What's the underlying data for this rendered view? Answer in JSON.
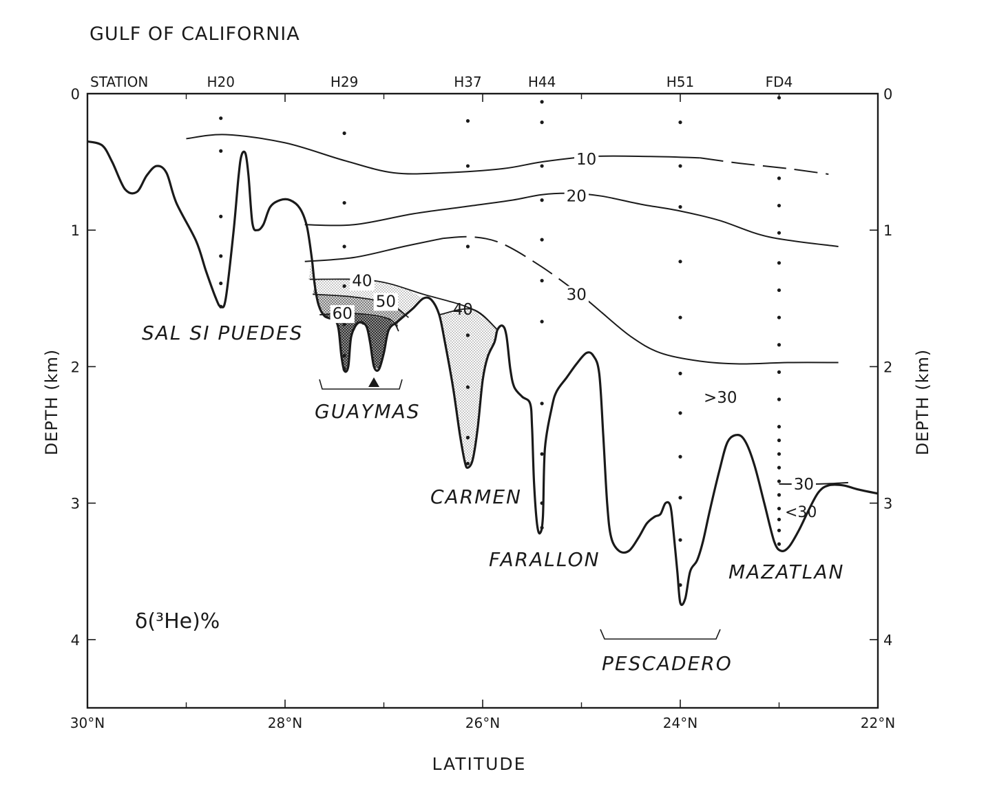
{
  "chart_data": {
    "type": "contour-section",
    "title": "GULF OF CALIFORNIA",
    "xlabel": "LATITUDE",
    "ylabel": "DEPTH (km)",
    "quantity_label": "δ(³He)%",
    "x_axis": {
      "ticks": [
        30,
        28,
        26,
        24,
        22
      ],
      "tick_labels": [
        "30°N",
        "28°N",
        "26°N",
        "24°N",
        "22°N"
      ],
      "range": [
        30,
        22
      ]
    },
    "y_axis": {
      "ticks": [
        0,
        1,
        2,
        3,
        4
      ],
      "tick_labels": [
        "0",
        "1",
        "2",
        "3",
        "4"
      ],
      "range": [
        0,
        4.5
      ]
    },
    "station_header": "STATION",
    "stations": [
      {
        "name": "H20",
        "lat": 28.65,
        "depths": [
          0.18,
          0.42,
          0.9,
          1.19,
          1.39,
          1.56
        ]
      },
      {
        "name": "H29",
        "lat": 27.4,
        "depths": [
          0.29,
          0.8,
          1.12,
          1.41,
          1.69,
          1.92,
          2.02
        ]
      },
      {
        "name": "H37",
        "lat": 26.15,
        "depths": [
          0.2,
          0.53,
          1.12,
          1.77,
          2.15,
          2.52,
          2.71
        ]
      },
      {
        "name": "H44",
        "lat": 25.4,
        "depths": [
          0.06,
          0.21,
          0.53,
          0.78,
          1.07,
          1.37,
          1.67,
          2.27,
          2.64,
          3.0,
          3.18
        ]
      },
      {
        "name": "H51",
        "lat": 24.0,
        "depths": [
          0.21,
          0.53,
          0.83,
          1.23,
          1.64,
          2.05,
          2.34,
          2.66,
          2.96,
          3.27,
          3.6
        ]
      },
      {
        "name": "FD4",
        "lat": 23.0,
        "depths": [
          0.03,
          0.62,
          0.82,
          1.02,
          1.24,
          1.44,
          1.64,
          1.84,
          2.04,
          2.24,
          2.44,
          2.54,
          2.64,
          2.74,
          2.84,
          2.94,
          3.04,
          3.12,
          3.2,
          3.3
        ]
      }
    ],
    "contours": [
      {
        "label": "10",
        "points": [
          [
            29.0,
            0.33
          ],
          [
            28.6,
            0.3
          ],
          [
            28.0,
            0.36
          ],
          [
            27.4,
            0.49
          ],
          [
            26.9,
            0.58
          ],
          [
            26.4,
            0.58
          ],
          [
            25.8,
            0.55
          ],
          [
            25.4,
            0.5
          ],
          [
            24.9,
            0.46
          ],
          [
            24.3,
            0.46
          ],
          [
            23.8,
            0.47
          ]
        ],
        "dashed_points": [
          [
            23.8,
            0.47
          ],
          [
            23.4,
            0.51
          ],
          [
            22.9,
            0.55
          ],
          [
            22.5,
            0.59
          ]
        ]
      },
      {
        "label": "20",
        "points": [
          [
            27.8,
            0.96
          ],
          [
            27.3,
            0.96
          ],
          [
            26.7,
            0.88
          ],
          [
            26.2,
            0.83
          ],
          [
            25.7,
            0.78
          ],
          [
            25.4,
            0.74
          ],
          [
            25.1,
            0.73
          ],
          [
            24.8,
            0.75
          ],
          [
            24.4,
            0.81
          ],
          [
            24.0,
            0.86
          ],
          [
            23.6,
            0.93
          ],
          [
            23.1,
            1.05
          ],
          [
            22.4,
            1.12
          ]
        ]
      },
      {
        "label": "30",
        "points": [
          [
            27.8,
            1.23
          ],
          [
            27.3,
            1.2
          ],
          [
            26.8,
            1.12
          ],
          [
            26.4,
            1.06
          ]
        ],
        "dashed_points": [
          [
            26.4,
            1.06
          ],
          [
            26.1,
            1.05
          ],
          [
            25.8,
            1.1
          ],
          [
            25.4,
            1.27
          ],
          [
            25.0,
            1.48
          ],
          [
            24.8,
            1.6
          ]
        ],
        "continued_points": [
          [
            24.8,
            1.6
          ],
          [
            24.5,
            1.78
          ],
          [
            24.2,
            1.9
          ],
          [
            23.8,
            1.96
          ],
          [
            23.4,
            1.98
          ],
          [
            22.9,
            1.97
          ],
          [
            22.4,
            1.97
          ]
        ]
      },
      {
        "label": "40",
        "points": [
          [
            27.75,
            1.36
          ],
          [
            27.1,
            1.37
          ],
          [
            26.6,
            1.47
          ],
          [
            26.1,
            1.58
          ],
          [
            25.85,
            1.73
          ]
        ]
      },
      {
        "label": "50",
        "points": [
          [
            27.72,
            1.47
          ],
          [
            27.3,
            1.49
          ],
          [
            26.95,
            1.54
          ],
          [
            26.75,
            1.64
          ]
        ]
      },
      {
        "label": "60",
        "points": [
          [
            27.65,
            1.62
          ],
          [
            27.3,
            1.61
          ],
          [
            26.95,
            1.65
          ],
          [
            26.85,
            1.74
          ]
        ]
      },
      {
        "label": "30",
        "points": [
          [
            23.0,
            2.86
          ],
          [
            22.6,
            2.86
          ],
          [
            22.3,
            2.85
          ]
        ]
      }
    ],
    "shading_levels": [
      "40",
      "50",
      "60"
    ],
    "region_labels": [
      ">30",
      "<30"
    ],
    "basins": [
      "SAL SI PUEDES",
      "GUAYMAS",
      "CARMEN",
      "FARALLON",
      "PESCADERO",
      "MAZATLAN"
    ],
    "bathymetry": [
      [
        30.0,
        0.35
      ],
      [
        29.85,
        0.38
      ],
      [
        29.75,
        0.5
      ],
      [
        29.62,
        0.7
      ],
      [
        29.5,
        0.72
      ],
      [
        29.4,
        0.6
      ],
      [
        29.3,
        0.53
      ],
      [
        29.2,
        0.58
      ],
      [
        29.1,
        0.8
      ],
      [
        28.9,
        1.08
      ],
      [
        28.8,
        1.3
      ],
      [
        28.7,
        1.5
      ],
      [
        28.65,
        1.56
      ],
      [
        28.6,
        1.5
      ],
      [
        28.52,
        1.0
      ],
      [
        28.47,
        0.6
      ],
      [
        28.44,
        0.45
      ],
      [
        28.4,
        0.44
      ],
      [
        28.37,
        0.6
      ],
      [
        28.33,
        0.95
      ],
      [
        28.28,
        1.0
      ],
      [
        28.22,
        0.96
      ],
      [
        28.15,
        0.83
      ],
      [
        28.05,
        0.78
      ],
      [
        27.95,
        0.78
      ],
      [
        27.85,
        0.84
      ],
      [
        27.78,
        0.97
      ],
      [
        27.73,
        1.2
      ],
      [
        27.7,
        1.4
      ],
      [
        27.66,
        1.55
      ],
      [
        27.6,
        1.63
      ],
      [
        27.5,
        1.66
      ],
      [
        27.46,
        1.72
      ],
      [
        27.43,
        1.92
      ],
      [
        27.4,
        2.03
      ],
      [
        27.36,
        2.0
      ],
      [
        27.33,
        1.78
      ],
      [
        27.26,
        1.68
      ],
      [
        27.18,
        1.7
      ],
      [
        27.14,
        1.82
      ],
      [
        27.1,
        2.0
      ],
      [
        27.05,
        2.02
      ],
      [
        27.0,
        1.9
      ],
      [
        26.95,
        1.73
      ],
      [
        26.86,
        1.67
      ],
      [
        26.78,
        1.62
      ],
      [
        26.7,
        1.57
      ],
      [
        26.6,
        1.5
      ],
      [
        26.52,
        1.51
      ],
      [
        26.44,
        1.62
      ],
      [
        26.38,
        1.83
      ],
      [
        26.3,
        2.15
      ],
      [
        26.23,
        2.5
      ],
      [
        26.18,
        2.7
      ],
      [
        26.15,
        2.74
      ],
      [
        26.1,
        2.68
      ],
      [
        26.05,
        2.45
      ],
      [
        26.0,
        2.1
      ],
      [
        25.95,
        1.93
      ],
      [
        25.88,
        1.82
      ],
      [
        25.85,
        1.73
      ],
      [
        25.8,
        1.7
      ],
      [
        25.76,
        1.77
      ],
      [
        25.72,
        2.02
      ],
      [
        25.68,
        2.15
      ],
      [
        25.6,
        2.22
      ],
      [
        25.52,
        2.27
      ],
      [
        25.5,
        2.45
      ],
      [
        25.48,
        2.85
      ],
      [
        25.45,
        3.15
      ],
      [
        25.42,
        3.22
      ],
      [
        25.39,
        3.1
      ],
      [
        25.37,
        2.6
      ],
      [
        25.3,
        2.3
      ],
      [
        25.25,
        2.18
      ],
      [
        25.15,
        2.08
      ],
      [
        25.05,
        1.98
      ],
      [
        24.95,
        1.9
      ],
      [
        24.88,
        1.92
      ],
      [
        24.82,
        2.05
      ],
      [
        24.78,
        2.5
      ],
      [
        24.74,
        3.0
      ],
      [
        24.7,
        3.25
      ],
      [
        24.62,
        3.35
      ],
      [
        24.52,
        3.35
      ],
      [
        24.42,
        3.25
      ],
      [
        24.34,
        3.15
      ],
      [
        24.26,
        3.1
      ],
      [
        24.2,
        3.08
      ],
      [
        24.15,
        3.0
      ],
      [
        24.1,
        3.02
      ],
      [
        24.07,
        3.2
      ],
      [
        24.03,
        3.5
      ],
      [
        24.0,
        3.73
      ],
      [
        23.95,
        3.7
      ],
      [
        23.9,
        3.5
      ],
      [
        23.83,
        3.42
      ],
      [
        23.77,
        3.28
      ],
      [
        23.7,
        3.05
      ],
      [
        23.6,
        2.75
      ],
      [
        23.52,
        2.55
      ],
      [
        23.42,
        2.5
      ],
      [
        23.34,
        2.55
      ],
      [
        23.25,
        2.72
      ],
      [
        23.15,
        3.0
      ],
      [
        23.05,
        3.28
      ],
      [
        22.98,
        3.35
      ],
      [
        22.9,
        3.32
      ],
      [
        22.8,
        3.2
      ],
      [
        22.7,
        3.05
      ],
      [
        22.6,
        2.92
      ],
      [
        22.5,
        2.87
      ],
      [
        22.35,
        2.87
      ],
      [
        22.2,
        2.9
      ],
      [
        22.0,
        2.93
      ]
    ]
  }
}
